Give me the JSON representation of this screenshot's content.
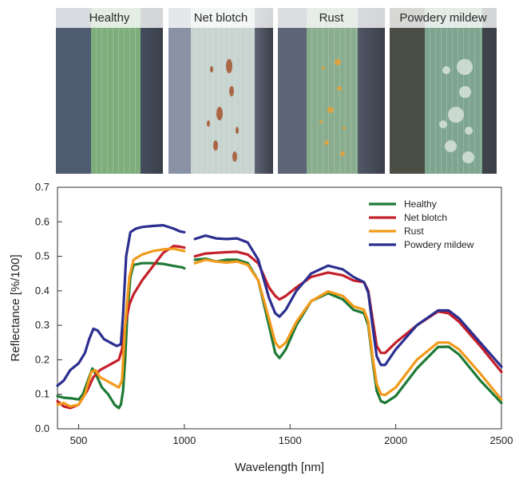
{
  "photos": [
    {
      "label": "Healthy",
      "bg": "#4f5b70",
      "leaf": "#7fae7c",
      "spots": "none"
    },
    {
      "label": "Net blotch",
      "bg": "#8a93a6",
      "leaf": "#c7d4cf",
      "spots": "brown"
    },
    {
      "label": "Rust",
      "bg": "#5e6576",
      "leaf": "#89ad8e",
      "spots": "orange"
    },
    {
      "label": "Powdery mildew",
      "bg": "#4b4e45",
      "leaf": "#7ea58f",
      "spots": "white"
    }
  ],
  "chart_data": {
    "type": "line",
    "xlabel": "Wavelength [nm]",
    "ylabel": "Reflectance [%/100]",
    "xlim": [
      400,
      2500
    ],
    "ylim": [
      0,
      0.7
    ],
    "xticks": [
      "500",
      "1000",
      "1500",
      "2000",
      "2500"
    ],
    "yticks": [
      "0.0",
      "0.1",
      "0.2",
      "0.3",
      "0.4",
      "0.5",
      "0.6",
      "0.7"
    ],
    "legend_position": "top-right",
    "grid": false,
    "series": [
      {
        "name": "Healthy",
        "color": "#1e7a36",
        "segments": [
          [
            [
              400,
              0.095
            ],
            [
              430,
              0.09
            ],
            [
              470,
              0.088
            ],
            [
              500,
              0.085
            ],
            [
              520,
              0.1
            ],
            [
              550,
              0.15
            ],
            [
              565,
              0.175
            ],
            [
              580,
              0.16
            ],
            [
              610,
              0.12
            ],
            [
              640,
              0.1
            ],
            [
              670,
              0.07
            ],
            [
              690,
              0.06
            ],
            [
              700,
              0.07
            ],
            [
              710,
              0.11
            ],
            [
              720,
              0.2
            ],
            [
              730,
              0.33
            ],
            [
              745,
              0.44
            ],
            [
              760,
              0.475
            ],
            [
              800,
              0.48
            ],
            [
              850,
              0.48
            ],
            [
              900,
              0.478
            ],
            [
              950,
              0.472
            ],
            [
              990,
              0.468
            ],
            [
              1000,
              0.465
            ]
          ],
          [
            [
              1050,
              0.49
            ],
            [
              1100,
              0.493
            ],
            [
              1150,
              0.485
            ],
            [
              1200,
              0.49
            ],
            [
              1250,
              0.49
            ],
            [
              1300,
              0.48
            ],
            [
              1350,
              0.43
            ],
            [
              1400,
              0.3
            ],
            [
              1430,
              0.22
            ],
            [
              1450,
              0.205
            ],
            [
              1480,
              0.23
            ],
            [
              1530,
              0.3
            ],
            [
              1600,
              0.37
            ],
            [
              1680,
              0.393
            ],
            [
              1750,
              0.375
            ],
            [
              1800,
              0.345
            ],
            [
              1850,
              0.335
            ],
            [
              1870,
              0.3
            ],
            [
              1890,
              0.2
            ],
            [
              1910,
              0.11
            ],
            [
              1930,
              0.08
            ],
            [
              1950,
              0.075
            ],
            [
              2000,
              0.095
            ],
            [
              2100,
              0.175
            ],
            [
              2200,
              0.237
            ],
            [
              2250,
              0.238
            ],
            [
              2300,
              0.215
            ],
            [
              2400,
              0.14
            ],
            [
              2500,
              0.075
            ]
          ]
        ]
      },
      {
        "name": "Net blotch",
        "color": "#c4202a",
        "segments": [
          [
            [
              400,
              0.08
            ],
            [
              430,
              0.065
            ],
            [
              460,
              0.06
            ],
            [
              500,
              0.07
            ],
            [
              540,
              0.11
            ],
            [
              570,
              0.15
            ],
            [
              600,
              0.17
            ],
            [
              630,
              0.18
            ],
            [
              660,
              0.19
            ],
            [
              690,
              0.2
            ],
            [
              705,
              0.23
            ],
            [
              720,
              0.3
            ],
            [
              740,
              0.36
            ],
            [
              760,
              0.39
            ],
            [
              800,
              0.43
            ],
            [
              850,
              0.47
            ],
            [
              900,
              0.51
            ],
            [
              950,
              0.53
            ],
            [
              980,
              0.528
            ],
            [
              1000,
              0.525
            ]
          ],
          [
            [
              1050,
              0.5
            ],
            [
              1100,
              0.508
            ],
            [
              1150,
              0.51
            ],
            [
              1200,
              0.512
            ],
            [
              1250,
              0.513
            ],
            [
              1300,
              0.505
            ],
            [
              1350,
              0.48
            ],
            [
              1400,
              0.41
            ],
            [
              1430,
              0.385
            ],
            [
              1450,
              0.375
            ],
            [
              1480,
              0.385
            ],
            [
              1530,
              0.41
            ],
            [
              1600,
              0.44
            ],
            [
              1680,
              0.453
            ],
            [
              1750,
              0.445
            ],
            [
              1800,
              0.43
            ],
            [
              1850,
              0.425
            ],
            [
              1870,
              0.4
            ],
            [
              1890,
              0.32
            ],
            [
              1910,
              0.24
            ],
            [
              1930,
              0.22
            ],
            [
              1950,
              0.22
            ],
            [
              2000,
              0.25
            ],
            [
              2100,
              0.3
            ],
            [
              2200,
              0.34
            ],
            [
              2250,
              0.335
            ],
            [
              2300,
              0.31
            ],
            [
              2400,
              0.24
            ],
            [
              2500,
              0.165
            ]
          ]
        ]
      },
      {
        "name": "Rust",
        "color": "#f39a1a",
        "segments": [
          [
            [
              400,
              0.07
            ],
            [
              430,
              0.075
            ],
            [
              460,
              0.065
            ],
            [
              500,
              0.07
            ],
            [
              530,
              0.1
            ],
            [
              560,
              0.165
            ],
            [
              580,
              0.17
            ],
            [
              600,
              0.15
            ],
            [
              630,
              0.14
            ],
            [
              660,
              0.13
            ],
            [
              690,
              0.12
            ],
            [
              705,
              0.14
            ],
            [
              720,
              0.3
            ],
            [
              740,
              0.44
            ],
            [
              760,
              0.49
            ],
            [
              800,
              0.505
            ],
            [
              850,
              0.515
            ],
            [
              900,
              0.52
            ],
            [
              950,
              0.522
            ],
            [
              980,
              0.518
            ],
            [
              1000,
              0.515
            ]
          ],
          [
            [
              1050,
              0.48
            ],
            [
              1100,
              0.49
            ],
            [
              1150,
              0.485
            ],
            [
              1200,
              0.482
            ],
            [
              1250,
              0.485
            ],
            [
              1300,
              0.475
            ],
            [
              1350,
              0.43
            ],
            [
              1400,
              0.32
            ],
            [
              1430,
              0.25
            ],
            [
              1450,
              0.235
            ],
            [
              1480,
              0.25
            ],
            [
              1530,
              0.31
            ],
            [
              1600,
              0.37
            ],
            [
              1680,
              0.398
            ],
            [
              1750,
              0.385
            ],
            [
              1800,
              0.355
            ],
            [
              1850,
              0.345
            ],
            [
              1870,
              0.31
            ],
            [
              1890,
              0.21
            ],
            [
              1910,
              0.13
            ],
            [
              1930,
              0.1
            ],
            [
              1950,
              0.098
            ],
            [
              2000,
              0.12
            ],
            [
              2100,
              0.2
            ],
            [
              2200,
              0.25
            ],
            [
              2250,
              0.25
            ],
            [
              2300,
              0.23
            ],
            [
              2400,
              0.16
            ],
            [
              2500,
              0.085
            ]
          ]
        ]
      },
      {
        "name": "Powdery mildew",
        "color": "#2b2e8f",
        "segments": [
          [
            [
              400,
              0.125
            ],
            [
              430,
              0.14
            ],
            [
              460,
              0.17
            ],
            [
              500,
              0.19
            ],
            [
              530,
              0.22
            ],
            [
              550,
              0.26
            ],
            [
              570,
              0.29
            ],
            [
              590,
              0.285
            ],
            [
              620,
              0.26
            ],
            [
              650,
              0.25
            ],
            [
              680,
              0.24
            ],
            [
              700,
              0.245
            ],
            [
              710,
              0.33
            ],
            [
              725,
              0.5
            ],
            [
              745,
              0.57
            ],
            [
              770,
              0.58
            ],
            [
              800,
              0.585
            ],
            [
              850,
              0.588
            ],
            [
              900,
              0.59
            ],
            [
              950,
              0.58
            ],
            [
              980,
              0.572
            ],
            [
              1000,
              0.57
            ]
          ],
          [
            [
              1050,
              0.55
            ],
            [
              1100,
              0.56
            ],
            [
              1150,
              0.552
            ],
            [
              1200,
              0.55
            ],
            [
              1250,
              0.552
            ],
            [
              1300,
              0.54
            ],
            [
              1350,
              0.49
            ],
            [
              1400,
              0.38
            ],
            [
              1430,
              0.335
            ],
            [
              1450,
              0.325
            ],
            [
              1480,
              0.345
            ],
            [
              1530,
              0.4
            ],
            [
              1600,
              0.45
            ],
            [
              1680,
              0.473
            ],
            [
              1750,
              0.462
            ],
            [
              1800,
              0.44
            ],
            [
              1850,
              0.425
            ],
            [
              1870,
              0.395
            ],
            [
              1890,
              0.3
            ],
            [
              1910,
              0.21
            ],
            [
              1930,
              0.185
            ],
            [
              1950,
              0.185
            ],
            [
              2000,
              0.23
            ],
            [
              2100,
              0.3
            ],
            [
              2200,
              0.343
            ],
            [
              2250,
              0.343
            ],
            [
              2300,
              0.32
            ],
            [
              2400,
              0.25
            ],
            [
              2500,
              0.18
            ]
          ]
        ]
      }
    ]
  }
}
